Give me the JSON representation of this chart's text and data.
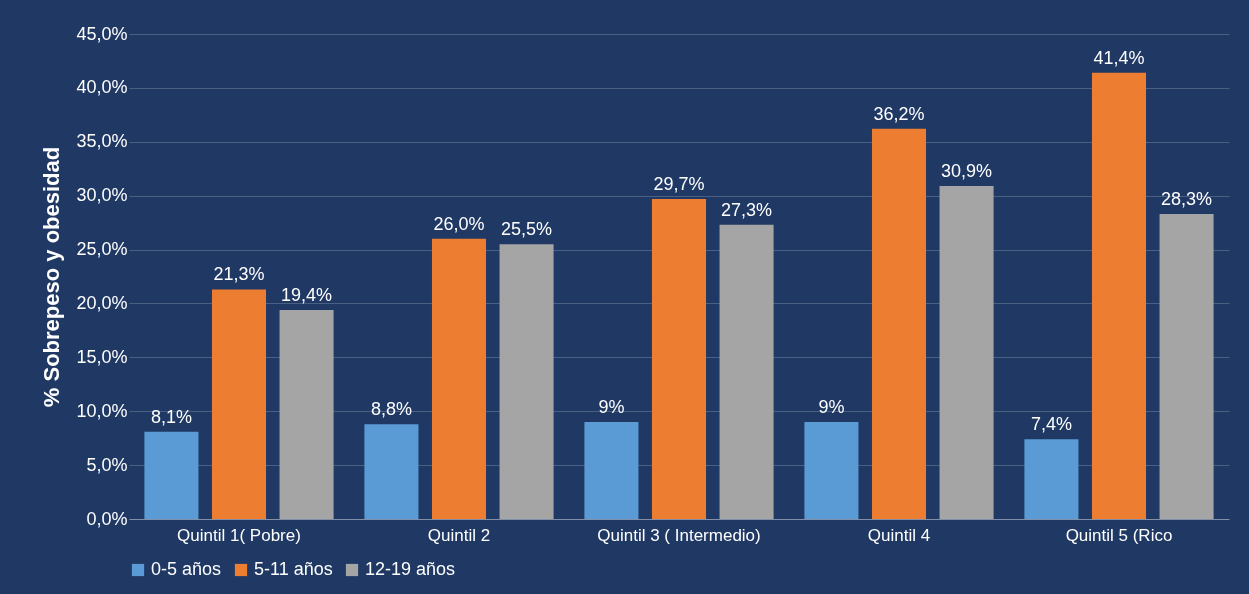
{
  "chart_data": {
    "type": "bar",
    "ylabel": "% Sobrepeso y obesidad",
    "categories": [
      "Quintil  1( Pobre)",
      "Quintil 2",
      "Quintil 3 ( Intermedio)",
      "Quintil 4",
      "Quintil 5 (Rico"
    ],
    "series": [
      {
        "name": "0-5 años",
        "color": "#5b9bd5",
        "values": [
          8.1,
          8.8,
          9,
          9,
          7.4
        ],
        "value_labels": [
          "8,1%",
          "8,8%",
          "9%",
          "9%",
          "7,4%"
        ]
      },
      {
        "name": "5-11 años",
        "color": "#ed7d31",
        "values": [
          21.3,
          26.0,
          29.7,
          36.2,
          41.4
        ],
        "value_labels": [
          "21,3%",
          "26,0%",
          "29,7%",
          "36,2%",
          "41,4%"
        ]
      },
      {
        "name": "12-19 años",
        "color": "#a5a5a5",
        "values": [
          19.4,
          25.5,
          27.3,
          30.9,
          28.3
        ],
        "value_labels": [
          "19,4%",
          "25,5%",
          "27,3%",
          "30,9%",
          "28,3%"
        ]
      }
    ],
    "ylim": [
      0,
      45
    ],
    "yticks": [
      {
        "value": 0,
        "label": "0,0%"
      },
      {
        "value": 5,
        "label": "5,0%"
      },
      {
        "value": 10,
        "label": "10,0%"
      },
      {
        "value": 15,
        "label": "15,0%"
      },
      {
        "value": 20,
        "label": "20,0%"
      },
      {
        "value": 25,
        "label": "25,0%"
      },
      {
        "value": 30,
        "label": "30,0%"
      },
      {
        "value": 35,
        "label": "35,0%"
      },
      {
        "value": 40,
        "label": "40,0%"
      },
      {
        "value": 45,
        "label": "45,0%"
      }
    ],
    "grid": "y",
    "legend": "bottom"
  }
}
